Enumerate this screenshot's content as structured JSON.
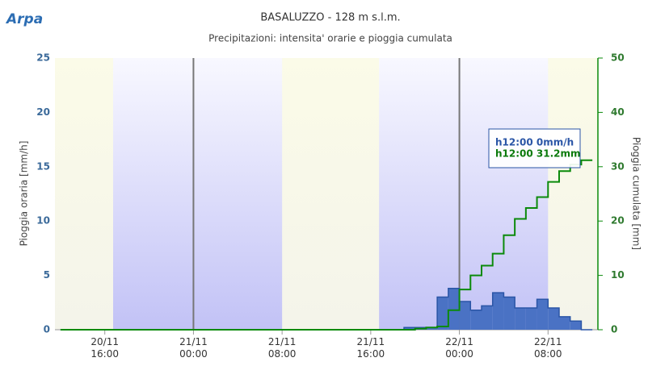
{
  "logo": "Arpa",
  "chart_data": {
    "type": "combo",
    "title": "BASALUZZO - 128 m s.l.m.",
    "subtitle": "Precipitazioni: intensita' orarie e pioggia cumulata",
    "y_label": "Pioggia oraria [mm/h]",
    "y2_label": "Pioggia cumulata [mm]",
    "xlim": [
      11.5,
      60.5
    ],
    "xticks": [
      {
        "value": 16,
        "label": "20/11\n16:00"
      },
      {
        "value": 24,
        "label": "21/11\n00:00"
      },
      {
        "value": 32,
        "label": "21/11\n08:00"
      },
      {
        "value": 40,
        "label": "21/11\n16:00"
      },
      {
        "value": 48,
        "label": "22/11\n00:00"
      },
      {
        "value": 56,
        "label": "22/11\n08:00"
      }
    ],
    "ylim": [
      0,
      25
    ],
    "yticks": [
      0,
      5,
      10,
      15,
      20,
      25
    ],
    "y2lim": [
      0,
      50
    ],
    "y2ticks": [
      0,
      10,
      20,
      30,
      40,
      50
    ],
    "night_bands": [
      [
        16.75,
        32
      ],
      [
        40.75,
        56
      ]
    ],
    "day_lines": [
      24,
      48
    ],
    "x": [
      12,
      13,
      14,
      15,
      16,
      17,
      18,
      19,
      20,
      21,
      22,
      23,
      24,
      25,
      26,
      27,
      28,
      29,
      30,
      31,
      32,
      33,
      34,
      35,
      36,
      37,
      38,
      39,
      40,
      41,
      42,
      43,
      44,
      45,
      46,
      47,
      48,
      49,
      50,
      51,
      52,
      53,
      54,
      55,
      56,
      57,
      58,
      59
    ],
    "series": [
      {
        "name": "Pioggia oraria",
        "type": "area-step",
        "color": "#4a72c4",
        "values": [
          0,
          0,
          0,
          0,
          0,
          0,
          0,
          0,
          0,
          0,
          0,
          0,
          0,
          0,
          0,
          0,
          0,
          0,
          0,
          0,
          0,
          0,
          0,
          0,
          0,
          0,
          0,
          0,
          0,
          0,
          0,
          0.2,
          0.2,
          0.2,
          3.0,
          3.8,
          2.6,
          1.8,
          2.2,
          3.4,
          3.0,
          2.0,
          2.0,
          2.8,
          2.0,
          1.2,
          0.8,
          0
        ]
      },
      {
        "name": "Pioggia cumulata",
        "type": "line-step",
        "axis": "y2",
        "color": "#0b8a0b",
        "values": [
          0,
          0,
          0,
          0,
          0,
          0,
          0,
          0,
          0,
          0,
          0,
          0,
          0,
          0,
          0,
          0,
          0,
          0,
          0,
          0,
          0,
          0,
          0,
          0,
          0,
          0,
          0,
          0,
          0,
          0,
          0,
          0,
          0.2,
          0.4,
          0.6,
          3.6,
          7.4,
          10.0,
          11.8,
          14.0,
          17.4,
          20.4,
          22.4,
          24.4,
          27.2,
          29.2,
          30.4,
          31.2
        ]
      }
    ],
    "tooltip": [
      "h12:00 0mm/h",
      "h12:00 31.2mm"
    ]
  }
}
